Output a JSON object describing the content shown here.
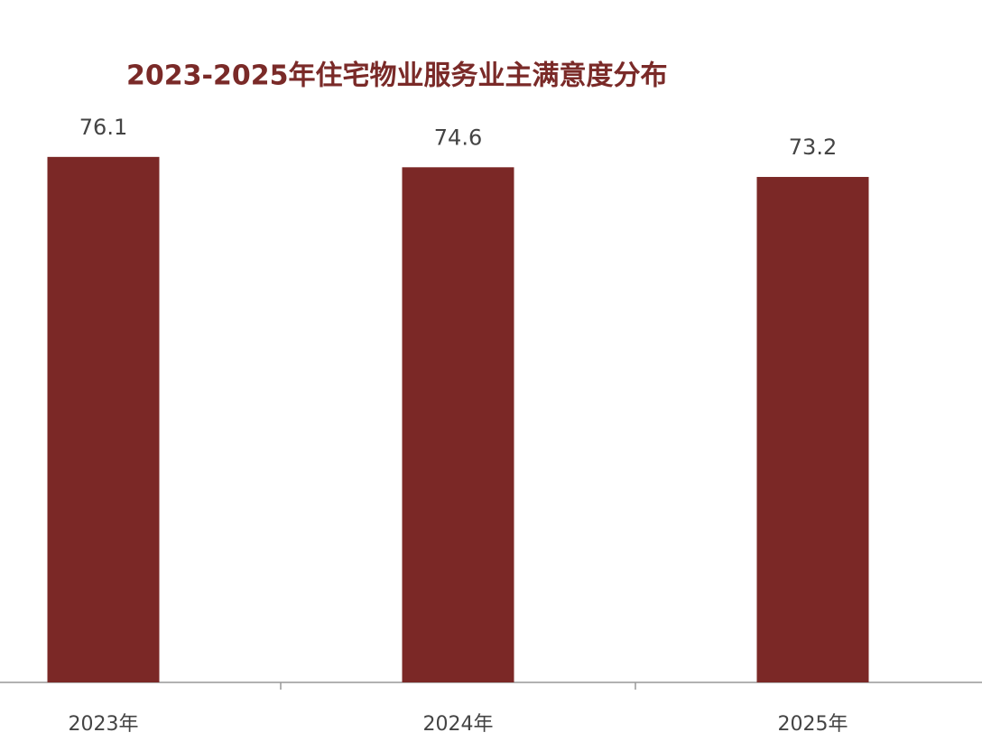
{
  "chart_data": {
    "type": "bar",
    "title": "2023-2025年住宅物业服务业主满意度分布",
    "categories": [
      "2023年",
      "2024年",
      "2025年"
    ],
    "values": [
      76.1,
      74.6,
      73.2
    ],
    "color": "#7b2826",
    "ylim": [
      0,
      80
    ]
  }
}
